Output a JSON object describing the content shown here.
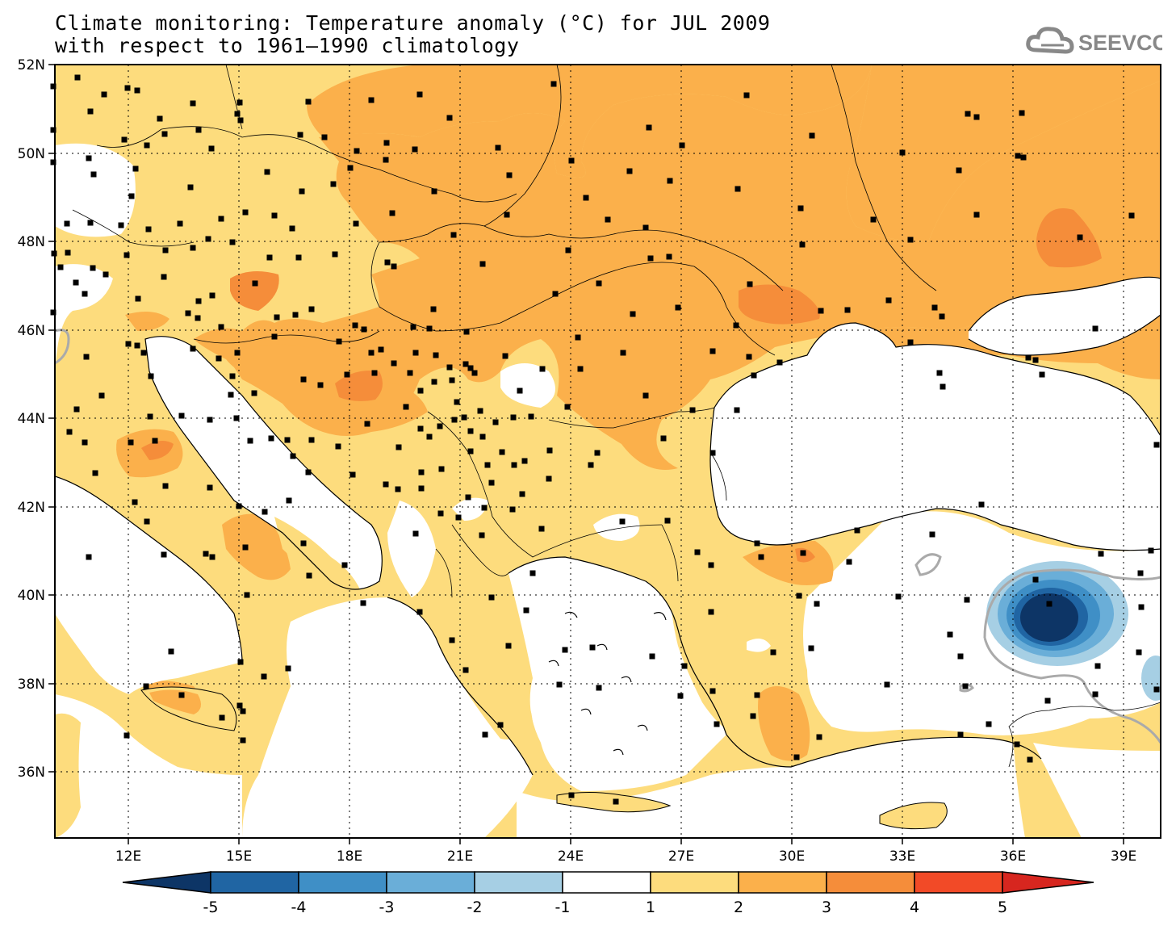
{
  "header": {
    "title_line1": "Climate monitoring: Temperature anomaly (°C) for JUL 2009",
    "title_line2": "with respect to 1961–1990 climatology",
    "logo_text": "SEEVCCC"
  },
  "map": {
    "lat_labels": [
      "52N",
      "50N",
      "48N",
      "46N",
      "44N",
      "42N",
      "40N",
      "38N",
      "36N"
    ],
    "lon_labels": [
      "12E",
      "15E",
      "18E",
      "21E",
      "24E",
      "27E",
      "30E",
      "33E",
      "36E",
      "39E"
    ],
    "land_fill": "#ffffff",
    "grid": "dotted"
  },
  "colorbar": {
    "labels": [
      "-5",
      "-4",
      "-3",
      "-2",
      "-1",
      "1",
      "2",
      "3",
      "4",
      "5"
    ],
    "colors": [
      "#0d3566",
      "#2065a3",
      "#3f8fc6",
      "#6aaed8",
      "#a6cfe4",
      "#ffffff",
      "#fddc7d",
      "#fbb04b",
      "#f58d3a",
      "#f24a27",
      "#d7261f"
    ]
  },
  "icons": [
    "cloud-logo-icon",
    "station-marker-icon"
  ]
}
